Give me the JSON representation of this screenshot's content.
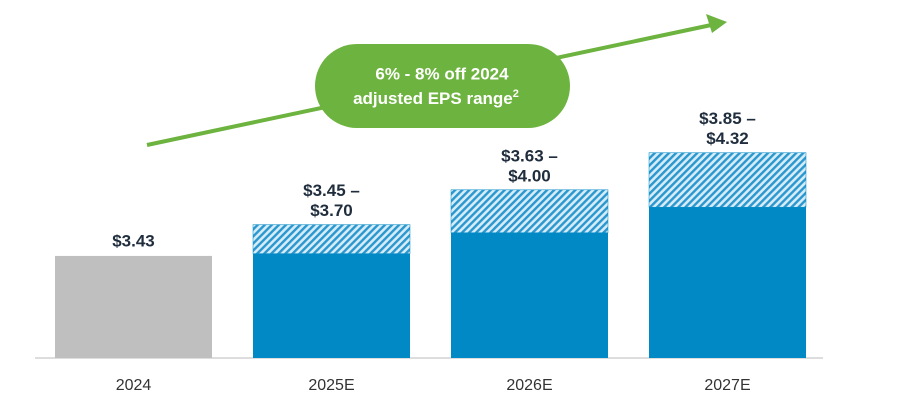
{
  "chart_data": {
    "type": "range-bar",
    "categories": [
      "2024",
      "2025E",
      "2026E",
      "2027E"
    ],
    "low": [
      3.43,
      3.45,
      3.63,
      3.85
    ],
    "high": [
      null,
      3.7,
      4.0,
      4.32
    ],
    "low_labels": [
      "$3.43",
      "$3.45 –",
      "$3.63 –",
      "$3.85 –"
    ],
    "high_labels": [
      null,
      "$3.70",
      "$4.00",
      "$4.32"
    ],
    "colors": [
      "#bfbfbf",
      "#0089c4",
      "#0089c4",
      "#0089c4"
    ],
    "range_color": "#0089c4",
    "ylim": [
      2.55,
      4.8
    ],
    "annotation": {
      "lines": [
        "6% - 8% off 2024",
        "adjusted EPS range"
      ],
      "superscript": "2",
      "color": "#6db33f"
    }
  }
}
